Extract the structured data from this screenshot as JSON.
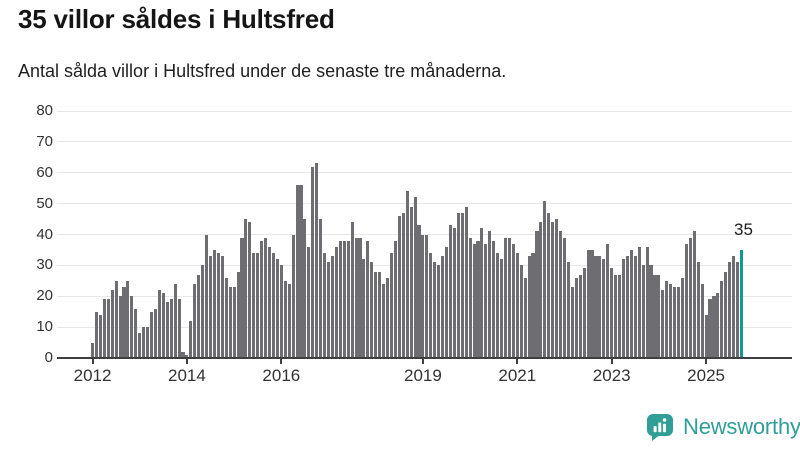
{
  "header": {
    "title": "35 villor såldes i Hultsfred",
    "subtitle": "Antal sålda villor i Hultsfred under de senaste tre månaderna."
  },
  "chart_data": {
    "type": "bar",
    "title": "35 villor såldes i Hultsfred",
    "ylabel": "",
    "xlabel": "",
    "x_unit": "month",
    "ylim": [
      0,
      80
    ],
    "grid": true,
    "legend": "none",
    "values": [
      5,
      15,
      14,
      19,
      19,
      22,
      25,
      20,
      23,
      25,
      20,
      16,
      8,
      10,
      10,
      15,
      16,
      22,
      21,
      18,
      19,
      24,
      19,
      2,
      1,
      12,
      24,
      27,
      30,
      40,
      33,
      35,
      34,
      33,
      26,
      23,
      23,
      28,
      39,
      45,
      44,
      34,
      34,
      38,
      39,
      36,
      34,
      32,
      30,
      25,
      24,
      40,
      56,
      56,
      45,
      36,
      62,
      63,
      45,
      34,
      31,
      33,
      36,
      38,
      38,
      38,
      44,
      39,
      39,
      32,
      38,
      31,
      28,
      28,
      24,
      26,
      34,
      38,
      46,
      47,
      54,
      49,
      52,
      43,
      40,
      40,
      34,
      31,
      30,
      33,
      36,
      43,
      42,
      47,
      47,
      49,
      39,
      37,
      38,
      42,
      37,
      41,
      38,
      34,
      32,
      39,
      39,
      37,
      34,
      30,
      26,
      33,
      34,
      41,
      44,
      51,
      47,
      44,
      45,
      41,
      39,
      31,
      23,
      26,
      27,
      29,
      35,
      35,
      33,
      33,
      32,
      37,
      29,
      27,
      27,
      32,
      33,
      35,
      33,
      36,
      30,
      36,
      30,
      27,
      27,
      22,
      25,
      24,
      23,
      23,
      26,
      37,
      39,
      41,
      31,
      24,
      14,
      19,
      20,
      21,
      25,
      28,
      31,
      33,
      31,
      35
    ],
    "highlight_last": true,
    "annotation": {
      "text": "35",
      "bar_index": 165
    },
    "y_ticks": [
      0,
      10,
      20,
      30,
      40,
      50,
      60,
      70,
      80
    ],
    "x_ticks": [
      {
        "label": "2012",
        "index": 0
      },
      {
        "label": "2014",
        "index": 24
      },
      {
        "label": "2016",
        "index": 48
      },
      {
        "label": "2019",
        "index": 84
      },
      {
        "label": "2021",
        "index": 108
      },
      {
        "label": "2023",
        "index": 132
      },
      {
        "label": "2025",
        "index": 156
      }
    ],
    "colors": {
      "bar": "#6e6e72",
      "highlight": "#0e9a90",
      "gridline": "#e7e7e7",
      "axis": "#3f3f3f",
      "tick_label": "#333333"
    }
  },
  "footer": {
    "logo_text": "Newsworthy",
    "logo_icon": "bar-chart-speech-bubble",
    "logo_color": "#319e98"
  }
}
